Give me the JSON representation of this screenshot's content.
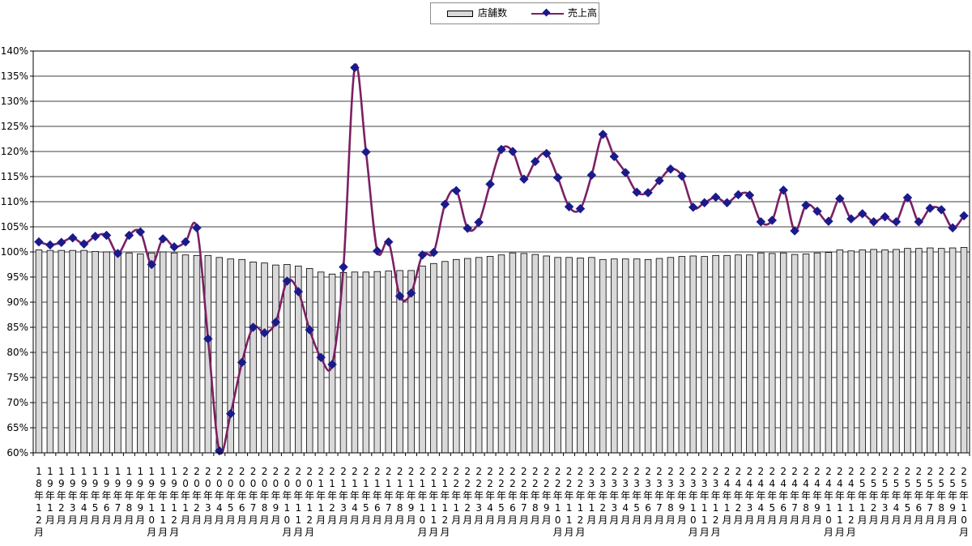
{
  "legend": {
    "bar_label": "店舗数",
    "line_label": "売上高"
  },
  "colors": {
    "bar_fill": "#d9d9d9",
    "bar_stroke": "#000000",
    "line": "#7b2064",
    "marker": "#1a1a8c",
    "grid": "#000000"
  },
  "chart_data": {
    "type": "bar+line",
    "title": "",
    "xlabel": "",
    "ylabel": "",
    "ylim": [
      60,
      140
    ],
    "y_ticks": [
      "60%",
      "65%",
      "70%",
      "75%",
      "80%",
      "85%",
      "90%",
      "95%",
      "100%",
      "105%",
      "110%",
      "115%",
      "120%",
      "125%",
      "130%",
      "135%",
      "140%"
    ],
    "grid": "horizontal",
    "legend_position": "top-center",
    "categories": [
      "18年12月",
      "19年1月",
      "19年2月",
      "19年3月",
      "19年4月",
      "19年5月",
      "19年6月",
      "19年7月",
      "19年8月",
      "19年9月",
      "19年10月",
      "19年11月",
      "19年12月",
      "20年1月",
      "20年2月",
      "20年3月",
      "20年4月",
      "20年5月",
      "20年6月",
      "20年7月",
      "20年8月",
      "20年9月",
      "20年10月",
      "20年11月",
      "20年12月",
      "21年1月",
      "21年2月",
      "21年3月",
      "21年4月",
      "21年5月",
      "21年6月",
      "21年7月",
      "21年8月",
      "21年9月",
      "21年10月",
      "21年11月",
      "21年12月",
      "22年1月",
      "22年2月",
      "22年3月",
      "22年4月",
      "22年5月",
      "22年6月",
      "22年7月",
      "22年8月",
      "22年9月",
      "22年10月",
      "22年11月",
      "22年12月",
      "23年1月",
      "23年2月",
      "23年3月",
      "23年4月",
      "23年5月",
      "23年6月",
      "23年7月",
      "23年8月",
      "23年9月",
      "23年10月",
      "23年11月",
      "23年12月",
      "24年1月",
      "24年2月",
      "24年3月",
      "24年4月",
      "24年5月",
      "24年6月",
      "24年7月",
      "24年8月",
      "24年9月",
      "24年10月",
      "24年11月",
      "24年12月",
      "25年1月",
      "25年2月",
      "25年3月",
      "25年4月",
      "25年5月",
      "25年6月",
      "25年7月",
      "25年8月",
      "25年9月",
      "25年10月"
    ],
    "x_tick_labels": [
      [
        "1",
        "8",
        "年",
        "1",
        "2",
        "月"
      ],
      [
        "1",
        "9",
        "年",
        "1",
        "月"
      ],
      [
        "1",
        "9",
        "年",
        "2",
        "月"
      ],
      [
        "1",
        "9",
        "年",
        "3",
        "月"
      ],
      [
        "1",
        "9",
        "年",
        "4",
        "月"
      ],
      [
        "1",
        "9",
        "年",
        "5",
        "月"
      ],
      [
        "1",
        "9",
        "年",
        "6",
        "月"
      ],
      [
        "1",
        "9",
        "年",
        "7",
        "月"
      ],
      [
        "1",
        "9",
        "年",
        "8",
        "月"
      ],
      [
        "1",
        "9",
        "年",
        "9",
        "月"
      ],
      [
        "1",
        "9",
        "年",
        "1",
        "0",
        "月"
      ],
      [
        "1",
        "9",
        "年",
        "1",
        "1",
        "月"
      ],
      [
        "1",
        "9",
        "年",
        "1",
        "2",
        "月"
      ],
      [
        "2",
        "0",
        "年",
        "1",
        "月"
      ],
      [
        "2",
        "0",
        "年",
        "2",
        "月"
      ],
      [
        "2",
        "0",
        "年",
        "3",
        "月"
      ],
      [
        "2",
        "0",
        "年",
        "4",
        "月"
      ],
      [
        "2",
        "0",
        "年",
        "5",
        "月"
      ],
      [
        "2",
        "0",
        "年",
        "6",
        "月"
      ],
      [
        "2",
        "0",
        "年",
        "7",
        "月"
      ],
      [
        "2",
        "0",
        "年",
        "8",
        "月"
      ],
      [
        "2",
        "0",
        "年",
        "9",
        "月"
      ],
      [
        "2",
        "0",
        "年",
        "1",
        "0",
        "月"
      ],
      [
        "2",
        "0",
        "年",
        "1",
        "1",
        "月"
      ],
      [
        "2",
        "0",
        "年",
        "1",
        "2",
        "月"
      ],
      [
        "2",
        "1",
        "年",
        "1",
        "月"
      ],
      [
        "2",
        "1",
        "年",
        "2",
        "月"
      ],
      [
        "2",
        "1",
        "年",
        "3",
        "月"
      ],
      [
        "2",
        "1",
        "年",
        "4",
        "月"
      ],
      [
        "2",
        "1",
        "年",
        "5",
        "月"
      ],
      [
        "2",
        "1",
        "年",
        "6",
        "月"
      ],
      [
        "2",
        "1",
        "年",
        "7",
        "月"
      ],
      [
        "2",
        "1",
        "年",
        "8",
        "月"
      ],
      [
        "2",
        "1",
        "年",
        "9",
        "月"
      ],
      [
        "2",
        "1",
        "年",
        "1",
        "0",
        "月"
      ],
      [
        "2",
        "1",
        "年",
        "1",
        "1",
        "月"
      ],
      [
        "2",
        "1",
        "年",
        "1",
        "2",
        "月"
      ],
      [
        "2",
        "2",
        "年",
        "1",
        "月"
      ],
      [
        "2",
        "2",
        "年",
        "2",
        "月"
      ],
      [
        "2",
        "2",
        "年",
        "3",
        "月"
      ],
      [
        "2",
        "2",
        "年",
        "4",
        "月"
      ],
      [
        "2",
        "2",
        "年",
        "5",
        "月"
      ],
      [
        "2",
        "2",
        "年",
        "6",
        "月"
      ],
      [
        "2",
        "2",
        "年",
        "7",
        "月"
      ],
      [
        "2",
        "2",
        "年",
        "8",
        "月"
      ],
      [
        "2",
        "2",
        "年",
        "9",
        "月"
      ],
      [
        "2",
        "2",
        "年",
        "1",
        "0",
        "月"
      ],
      [
        "2",
        "2",
        "年",
        "1",
        "1",
        "月"
      ],
      [
        "2",
        "2",
        "年",
        "1",
        "2",
        "月"
      ],
      [
        "2",
        "3",
        "年",
        "1",
        "月"
      ],
      [
        "2",
        "3",
        "年",
        "2",
        "月"
      ],
      [
        "2",
        "3",
        "年",
        "3",
        "月"
      ],
      [
        "2",
        "3",
        "年",
        "4",
        "月"
      ],
      [
        "2",
        "3",
        "年",
        "5",
        "月"
      ],
      [
        "2",
        "3",
        "年",
        "6",
        "月"
      ],
      [
        "2",
        "3",
        "年",
        "7",
        "月"
      ],
      [
        "2",
        "3",
        "年",
        "8",
        "月"
      ],
      [
        "2",
        "3",
        "年",
        "9",
        "月"
      ],
      [
        "2",
        "3",
        "年",
        "1",
        "0",
        "月"
      ],
      [
        "2",
        "3",
        "年",
        "1",
        "1",
        "月"
      ],
      [
        "2",
        "3",
        "年",
        "1",
        "2",
        "月"
      ],
      [
        "2",
        "4",
        "年",
        "1",
        "月"
      ],
      [
        "2",
        "4",
        "年",
        "2",
        "月"
      ],
      [
        "2",
        "4",
        "年",
        "3",
        "月"
      ],
      [
        "2",
        "4",
        "年",
        "4",
        "月"
      ],
      [
        "2",
        "4",
        "年",
        "5",
        "月"
      ],
      [
        "2",
        "4",
        "年",
        "6",
        "月"
      ],
      [
        "2",
        "4",
        "年",
        "7",
        "月"
      ],
      [
        "2",
        "4",
        "年",
        "8",
        "月"
      ],
      [
        "2",
        "4",
        "年",
        "9",
        "月"
      ],
      [
        "2",
        "4",
        "年",
        "1",
        "0",
        "月"
      ],
      [
        "2",
        "4",
        "年",
        "1",
        "1",
        "月"
      ],
      [
        "2",
        "4",
        "年",
        "1",
        "2",
        "月"
      ],
      [
        "2",
        "5",
        "年",
        "1",
        "月"
      ],
      [
        "2",
        "5",
        "年",
        "2",
        "月"
      ],
      [
        "2",
        "5",
        "年",
        "3",
        "月"
      ],
      [
        "2",
        "5",
        "年",
        "4",
        "月"
      ],
      [
        "2",
        "5",
        "年",
        "5",
        "月"
      ],
      [
        "2",
        "5",
        "年",
        "6",
        "月"
      ],
      [
        "2",
        "5",
        "年",
        "7",
        "月"
      ],
      [
        "2",
        "5",
        "年",
        "8",
        "月"
      ],
      [
        "2",
        "5",
        "年",
        "9",
        "月"
      ],
      [
        "2",
        "5",
        "年",
        "1",
        "0",
        "月"
      ]
    ],
    "series": [
      {
        "name": "店舗数",
        "type": "bar",
        "values": [
          100.4,
          100.3,
          100.3,
          100.3,
          100.3,
          100.1,
          100.0,
          99.9,
          99.8,
          99.6,
          99.8,
          100.0,
          99.8,
          99.4,
          99.3,
          99.3,
          98.9,
          98.6,
          98.5,
          98.0,
          97.8,
          97.4,
          97.5,
          97.2,
          96.7,
          96.0,
          95.6,
          95.9,
          96.0,
          96.0,
          96.1,
          96.2,
          96.3,
          96.3,
          97.2,
          97.7,
          98.1,
          98.5,
          98.7,
          98.9,
          99.1,
          99.4,
          99.8,
          99.7,
          99.5,
          99.2,
          98.9,
          98.9,
          98.8,
          98.9,
          98.5,
          98.6,
          98.6,
          98.6,
          98.5,
          98.7,
          98.9,
          99.1,
          99.2,
          99.1,
          99.3,
          99.3,
          99.4,
          99.4,
          99.8,
          99.7,
          99.8,
          99.5,
          99.6,
          99.8,
          99.9,
          100.4,
          100.2,
          100.4,
          100.5,
          100.4,
          100.5,
          100.7,
          100.7,
          100.8,
          100.7,
          100.8,
          100.9
        ]
      },
      {
        "name": "売上高",
        "type": "line",
        "values": [
          102.0,
          101.4,
          101.9,
          102.8,
          101.6,
          103.1,
          103.3,
          99.7,
          103.3,
          104.0,
          97.5,
          102.6,
          101.0,
          102.0,
          104.8,
          82.7,
          60.4,
          67.8,
          78.0,
          85.0,
          83.9,
          86.0,
          94.2,
          92.1,
          84.5,
          79.0,
          77.6,
          97.0,
          136.7,
          119.9,
          100.2,
          102.0,
          91.2,
          91.8,
          99.4,
          99.9,
          109.5,
          112.2,
          104.7,
          105.9,
          113.5,
          120.4,
          120.0,
          114.5,
          118.0,
          119.6,
          114.8,
          109.0,
          108.6,
          115.3,
          123.4,
          119.0,
          115.8,
          111.9,
          111.8,
          114.2,
          116.5,
          115.1,
          108.9,
          109.8,
          110.9,
          109.8,
          111.4,
          111.3,
          106.0,
          106.3,
          112.3,
          104.2,
          109.3,
          108.1,
          106.1,
          110.6,
          106.6,
          107.6,
          106.0,
          107.0,
          106.0,
          110.8,
          106.0,
          108.7,
          108.4,
          104.8,
          107.2
        ]
      }
    ]
  }
}
